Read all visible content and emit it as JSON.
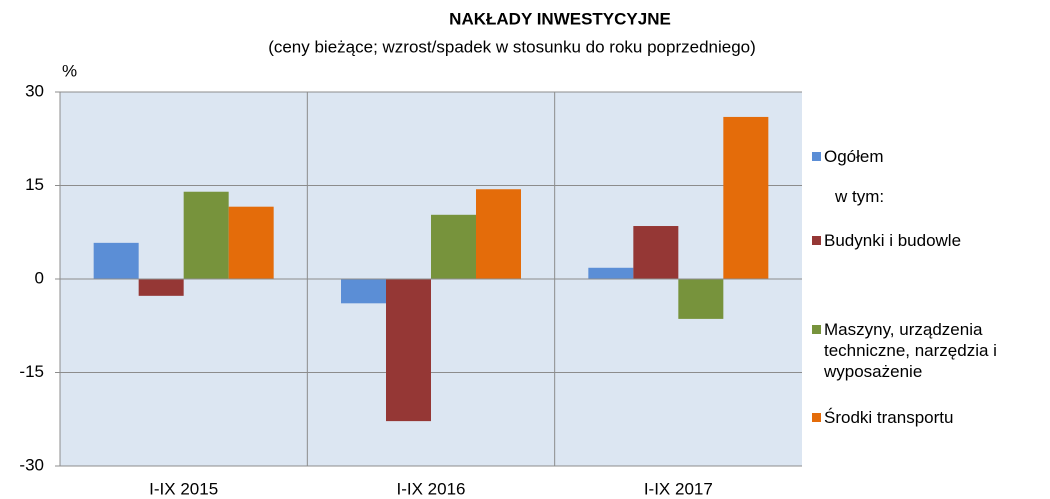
{
  "chart_data": {
    "type": "bar",
    "title": "NAKŁADY  INWESTYCYJNE",
    "subtitle": "(ceny bieżące; wzrost/spadek w stosunku do roku poprzedniego)",
    "y_label": "%",
    "legend_note": "w tym:",
    "categories": [
      "I-IX 2015",
      "I-IX 2016",
      "I-IX 2017"
    ],
    "series": [
      {
        "name": "Ogółem",
        "color": "#5b8ed6",
        "values": [
          5.8,
          -3.9,
          1.8
        ]
      },
      {
        "name": "Budynki i budowle",
        "color": "#953735",
        "values": [
          -2.7,
          -22.8,
          8.5
        ]
      },
      {
        "name": "Maszyny, urządzenia techniczne, narzędzia i wyposażenie",
        "color": "#77933c",
        "values": [
          14.0,
          10.3,
          -6.4
        ]
      },
      {
        "name": "Środki transportu",
        "color": "#e46c0a",
        "values": [
          11.6,
          14.4,
          26.0
        ]
      }
    ],
    "ylim": [
      -30,
      30
    ],
    "yticks": [
      -30,
      -15,
      0,
      15,
      30
    ],
    "grid": true
  }
}
